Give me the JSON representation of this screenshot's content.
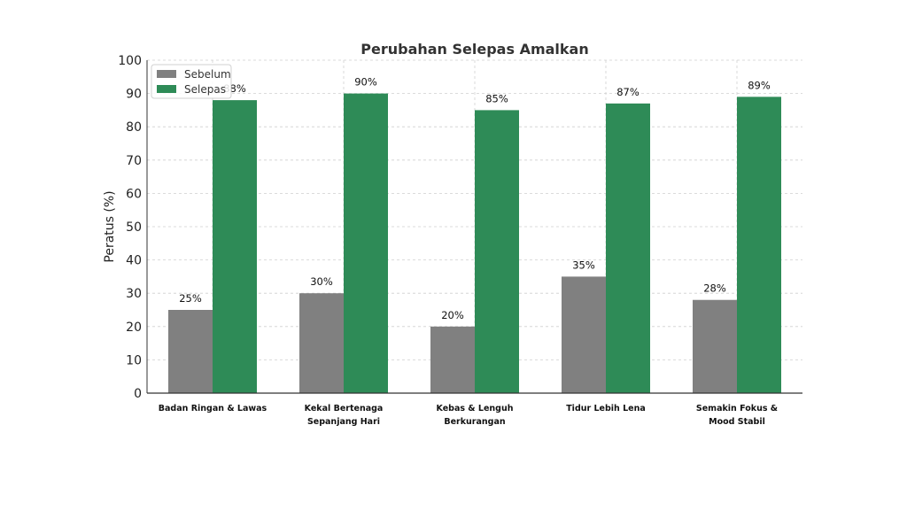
{
  "chart_data": {
    "type": "bar",
    "title": "Perubahan Selepas Amalkan",
    "xlabel": "",
    "ylabel": "Peratus (%)",
    "ylim": [
      0,
      100
    ],
    "yticks": [
      0,
      10,
      20,
      30,
      40,
      50,
      60,
      70,
      80,
      90,
      100
    ],
    "grid": true,
    "legend_position": "top-left",
    "categories": [
      [
        "Badan Ringan & Lawas"
      ],
      [
        "Kekal Bertenaga",
        "Sepanjang Hari"
      ],
      [
        "Kebas & Lenguh",
        "Berkurangan"
      ],
      [
        "Tidur Lebih Lena"
      ],
      [
        "Semakin Fokus &",
        "Mood Stabil"
      ]
    ],
    "series": [
      {
        "name": "Sebelum",
        "color": "#808080",
        "values": [
          25,
          30,
          20,
          35,
          28
        ],
        "labels": [
          "25%",
          "30%",
          "20%",
          "35%",
          "28%"
        ]
      },
      {
        "name": "Selepas",
        "color": "#2e8b57",
        "values": [
          88,
          90,
          85,
          87,
          89
        ],
        "labels": [
          "88%",
          "90%",
          "85%",
          "87%",
          "89%"
        ]
      }
    ]
  }
}
